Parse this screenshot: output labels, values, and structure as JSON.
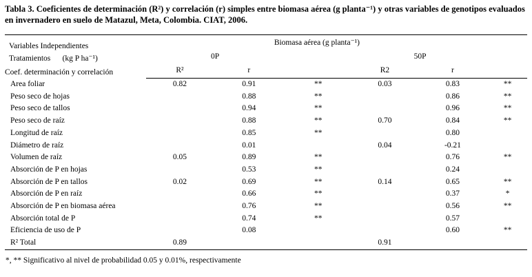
{
  "caption": {
    "text": "Tabla 3. Coeficientes de determinación (R²) y correlación (r) simples entre biomasa aérea (g planta⁻¹) y otras variables de genotipos evaluados en invernadero en suelo de Matazul, Meta, Colombia. CIAT, 2006."
  },
  "table": {
    "header": {
      "left_lines": [
        "Variables Independientes",
        "Tratamientos      (kg P ha⁻¹)",
        "Coef. determinación y correlación"
      ],
      "biomass_title": "Biomasa aérea (g planta⁻¹)",
      "groups": [
        "0P",
        "50P"
      ],
      "columns": [
        "R²",
        "r",
        "",
        "R2",
        "r",
        ""
      ]
    },
    "rows": [
      {
        "label": "Area foliar",
        "values": [
          "0.82",
          "0.91",
          "**",
          "0.03",
          "0.83",
          "**"
        ]
      },
      {
        "label": "Peso seco de hojas",
        "values": [
          "",
          "0.88",
          "**",
          "",
          "0.86",
          "**"
        ]
      },
      {
        "label": "Peso seco de tallos",
        "values": [
          "",
          "0.94",
          "**",
          "",
          "0.96",
          "**"
        ]
      },
      {
        "label": "Peso seco de raíz",
        "values": [
          "",
          "0.88",
          "**",
          "0.70",
          "0.84",
          "**"
        ]
      },
      {
        "label": "Longitud de raíz",
        "values": [
          "",
          "0.85",
          "**",
          "",
          "0.80",
          ""
        ]
      },
      {
        "label": "Diámetro de raíz",
        "values": [
          "",
          "0.01",
          "",
          "0.04",
          "-0.21",
          ""
        ]
      },
      {
        "label": "Volumen de raíz",
        "values": [
          "0.05",
          "0.89",
          "**",
          "",
          "0.76",
          "**"
        ]
      },
      {
        "label": "Absorción de P en hojas",
        "values": [
          "",
          "0.53",
          "**",
          "",
          "0.24",
          ""
        ]
      },
      {
        "label": "Absorción de P en tallos",
        "values": [
          "0.02",
          "0.69",
          "**",
          "0.14",
          "0.65",
          "**"
        ]
      },
      {
        "label": "Absorción de P en raíz",
        "values": [
          "",
          "0.66",
          "**",
          "",
          "0.37",
          "*"
        ]
      },
      {
        "label": "Absorción de P en biomasa aérea",
        "values": [
          "",
          "0.76",
          "**",
          "",
          "0.56",
          "**"
        ]
      },
      {
        "label": "Absorción total de P",
        "values": [
          "",
          "0.74",
          "**",
          "",
          "0.57",
          ""
        ]
      },
      {
        "label": "Eficiencia de uso de P",
        "values": [
          "",
          "0.08",
          "",
          "",
          "0.60",
          "**"
        ]
      },
      {
        "label": "R² Total",
        "values": [
          "0.89",
          "",
          "",
          "0.91",
          "",
          ""
        ]
      }
    ],
    "footnote": "*, ** Significativo al nivel de probabilidad 0.05 y 0.01%, respectivamente"
  }
}
